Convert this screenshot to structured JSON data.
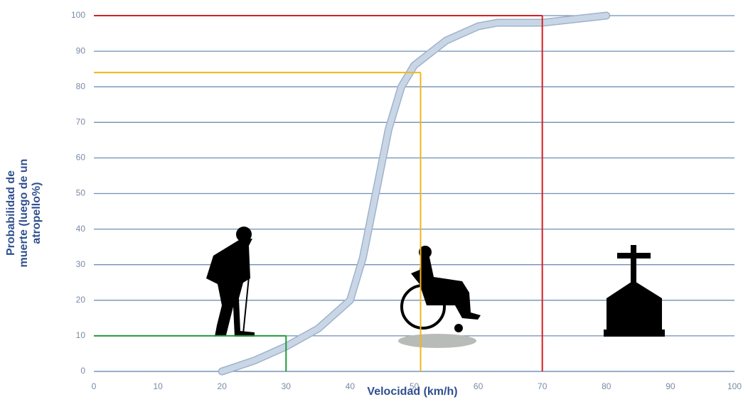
{
  "chart_data": {
    "type": "line",
    "x_label": "Velocidad (km/h)",
    "y_label": [
      "Probabilidad de",
      "muerte (luego de un",
      "atropello%)"
    ],
    "x": [
      20,
      25,
      30,
      35,
      40,
      42,
      44,
      46,
      48,
      50,
      55,
      60,
      63,
      70,
      75,
      80
    ],
    "values": [
      0,
      3,
      7,
      12,
      20,
      32,
      50,
      68,
      80,
      86,
      93,
      97,
      98,
      98,
      99,
      100
    ],
    "color": "#c9d6e6",
    "xlim": [
      0,
      100
    ],
    "xticks": [
      0,
      10,
      20,
      30,
      40,
      50,
      60,
      70,
      80,
      90,
      100
    ],
    "ylim": [
      0,
      100
    ],
    "yticks": [
      0,
      10,
      20,
      30,
      40,
      50,
      60,
      70,
      80,
      90,
      100
    ],
    "grid": true,
    "reference_lines": [
      {
        "x": 30,
        "y": 10,
        "color": "#1f9a3a"
      },
      {
        "x": 51,
        "y": 84,
        "color": "#f2b51c"
      },
      {
        "x": 70,
        "y": 100,
        "color": "#d42020"
      }
    ]
  }
}
